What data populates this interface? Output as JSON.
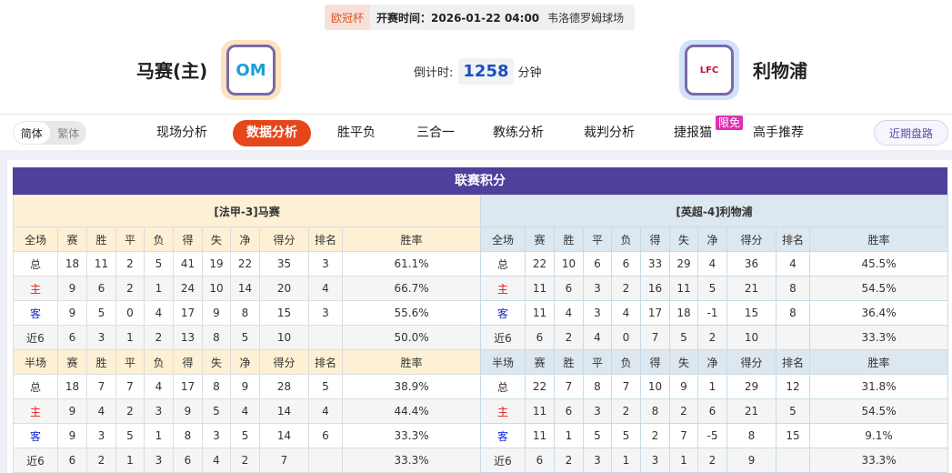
{
  "header": {
    "cup": "欧冠杯",
    "time": "开赛时间：2026-01-22 04:00",
    "venue": "韦洛德罗姆球场",
    "home_team": "马赛(主)",
    "away_team": "利物浦",
    "countdown_label": "倒计时:",
    "countdown_value": "1258",
    "countdown_unit": "分钟",
    "home_logo_text": "OM",
    "away_logo_text": "LFC"
  },
  "nav": {
    "lang": [
      "简体",
      "繁体"
    ],
    "tabs": [
      "现场分析",
      "数据分析",
      "胜平负",
      "三合一",
      "教练分析",
      "裁判分析",
      "捷报猫",
      "高手推荐"
    ],
    "active": "数据分析",
    "badge": "限免",
    "recent": "近期盘路"
  },
  "colors": {
    "title_bar": "#503f9b",
    "active_tab": "#e5471b",
    "home_label": "#e01b1b",
    "away_label": "#1a2fd0"
  },
  "standings": {
    "title": "联赛积分",
    "headers_full": [
      "全场",
      "赛",
      "胜",
      "平",
      "负",
      "得",
      "失",
      "净",
      "得分",
      "排名",
      "胜率"
    ],
    "headers_half": [
      "半场",
      "赛",
      "胜",
      "平",
      "负",
      "得",
      "失",
      "净",
      "得分",
      "排名",
      "胜率"
    ],
    "home": {
      "name": "[法甲-3]马赛",
      "full": [
        [
          "总",
          "18",
          "11",
          "2",
          "5",
          "41",
          "19",
          "22",
          "35",
          "3",
          "61.1%"
        ],
        [
          "主",
          "9",
          "6",
          "2",
          "1",
          "24",
          "10",
          "14",
          "20",
          "4",
          "66.7%"
        ],
        [
          "客",
          "9",
          "5",
          "0",
          "4",
          "17",
          "9",
          "8",
          "15",
          "3",
          "55.6%"
        ],
        [
          "近6",
          "6",
          "3",
          "1",
          "2",
          "13",
          "8",
          "5",
          "10",
          "",
          "50.0%"
        ]
      ],
      "half": [
        [
          "总",
          "18",
          "7",
          "7",
          "4",
          "17",
          "8",
          "9",
          "28",
          "5",
          "38.9%"
        ],
        [
          "主",
          "9",
          "4",
          "2",
          "3",
          "9",
          "5",
          "4",
          "14",
          "4",
          "44.4%"
        ],
        [
          "客",
          "9",
          "3",
          "5",
          "1",
          "8",
          "3",
          "5",
          "14",
          "6",
          "33.3%"
        ],
        [
          "近6",
          "6",
          "2",
          "1",
          "3",
          "6",
          "4",
          "2",
          "7",
          "",
          "33.3%"
        ]
      ]
    },
    "away": {
      "name": "[英超-4]利物浦",
      "full": [
        [
          "总",
          "22",
          "10",
          "6",
          "6",
          "33",
          "29",
          "4",
          "36",
          "4",
          "45.5%"
        ],
        [
          "主",
          "11",
          "6",
          "3",
          "2",
          "16",
          "11",
          "5",
          "21",
          "8",
          "54.5%"
        ],
        [
          "客",
          "11",
          "4",
          "3",
          "4",
          "17",
          "18",
          "-1",
          "15",
          "8",
          "36.4%"
        ],
        [
          "近6",
          "6",
          "2",
          "4",
          "0",
          "7",
          "5",
          "2",
          "10",
          "",
          "33.3%"
        ]
      ],
      "half": [
        [
          "总",
          "22",
          "7",
          "8",
          "7",
          "10",
          "9",
          "1",
          "29",
          "12",
          "31.8%"
        ],
        [
          "主",
          "11",
          "6",
          "3",
          "2",
          "8",
          "2",
          "6",
          "21",
          "5",
          "54.5%"
        ],
        [
          "客",
          "11",
          "1",
          "5",
          "5",
          "2",
          "7",
          "-5",
          "8",
          "15",
          "9.1%"
        ],
        [
          "近6",
          "6",
          "2",
          "3",
          "1",
          "3",
          "1",
          "2",
          "9",
          "",
          "33.3%"
        ]
      ]
    }
  }
}
